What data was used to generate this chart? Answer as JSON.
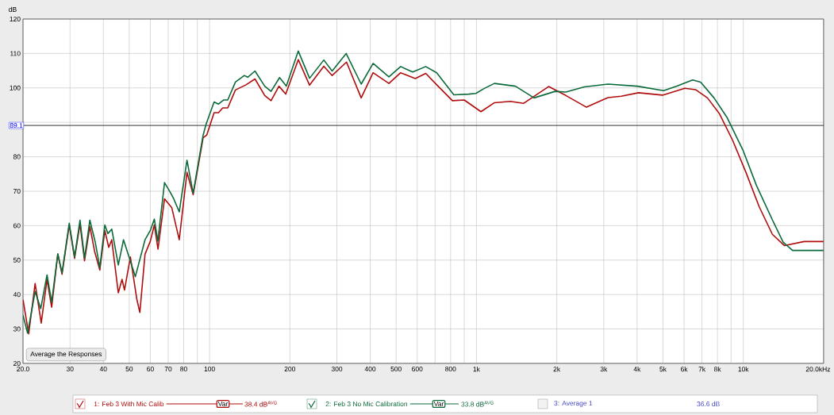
{
  "chart_data": {
    "type": "line",
    "ylabel": "dB",
    "xlim": [
      20,
      20000
    ],
    "ylim": [
      20,
      120
    ],
    "log": "x",
    "grid": true,
    "legend": "bottom",
    "xticks": [
      {
        "value": 20,
        "label": "20.0"
      },
      30,
      40,
      50,
      60,
      70,
      80,
      {
        "value": 90,
        "label": null
      },
      100,
      200,
      300,
      400,
      500,
      600,
      {
        "value": 700,
        "label": null
      },
      800,
      {
        "value": 900,
        "label": null
      },
      {
        "value": 1000,
        "label": "1k"
      },
      {
        "value": 2000,
        "label": "2k"
      },
      {
        "value": 3000,
        "label": "3k"
      },
      {
        "value": 4000,
        "label": "4k"
      },
      {
        "value": 5000,
        "label": "5k"
      },
      {
        "value": 6000,
        "label": "6k"
      },
      {
        "value": 7000,
        "label": "7k"
      },
      {
        "value": 8000,
        "label": "8k"
      },
      {
        "value": 9000,
        "label": null
      },
      {
        "value": 10000,
        "label": "10k"
      },
      {
        "value": 20000,
        "label": "20.0k"
      }
    ],
    "xlabel": "Hz",
    "yticks": [
      20,
      30,
      40,
      50,
      60,
      70,
      80,
      {
        "value": 90,
        "label": null
      },
      100,
      110,
      120
    ],
    "ref_lines": [
      {
        "axis": "y",
        "value": 89.1,
        "label": "89.1",
        "color": "#000000"
      }
    ],
    "annotations": [
      "Average the Responses",
      "Var",
      "38.4 dB$^{AVG}$",
      "Var",
      "33.8 dB$^{AVG}$",
      "3: Average 1",
      "36.6 dB"
    ],
    "series": [
      {
        "name": "1: Feb 3 With Mic Calib",
        "color": "#b00c0c",
        "x": [
          20,
          21,
          22.2,
          23.4,
          24.6,
          25.6,
          27,
          28,
          29.8,
          31.2,
          32.7,
          34,
          35.6,
          37.1,
          38.8,
          40.5,
          41.9,
          43,
          45.5,
          47,
          48,
          50.5,
          53.4,
          54.8,
          57.3,
          60,
          62.1,
          64.1,
          67.8,
          72.2,
          77,
          82.3,
          86.8,
          94.6,
          97.6,
          104,
          108,
          112,
          117,
          125,
          137,
          148,
          161,
          170,
          182,
          193,
          215,
          237,
          268,
          288,
          326,
          370,
          410,
          470,
          520,
          590,
          646,
          710,
          813,
          900,
          1040,
          1168,
          1340,
          1500,
          1865,
          2163,
          2585,
          3115,
          3490,
          4050,
          4980,
          6040,
          6620,
          7340,
          8140,
          9120,
          10230,
          11470,
          12850,
          14270,
          16900,
          20000
        ],
        "values": [
          38.5,
          28.6,
          43.2,
          31.7,
          44.4,
          36.3,
          51.8,
          45.9,
          60.2,
          50.5,
          60.5,
          49.8,
          59.8,
          52.5,
          47.1,
          58.6,
          53.7,
          55.9,
          40.5,
          44.4,
          41.3,
          50.9,
          38.6,
          34.8,
          51.7,
          55.5,
          60.2,
          53.2,
          67.8,
          65.2,
          55.9,
          75.5,
          69,
          85.5,
          86.3,
          92.8,
          92.8,
          94.2,
          94.2,
          99.4,
          100.9,
          102.6,
          97.8,
          96.3,
          100.5,
          98.2,
          108.2,
          100.8,
          106.3,
          103.6,
          107.5,
          97.1,
          104.4,
          101.3,
          104.4,
          102.7,
          104.2,
          100.9,
          96.3,
          96.5,
          93.1,
          95.7,
          96.1,
          95.5,
          100.4,
          97.8,
          94.4,
          97.2,
          97.6,
          98.6,
          97.9,
          99.9,
          99.5,
          97.1,
          92.5,
          84.8,
          75.5,
          65.5,
          57.5,
          54.2,
          55.4,
          55.4
        ]
      },
      {
        "name": "2: Feb 3 No Mic Calibration",
        "color": "#0b6a3a",
        "x": [
          20,
          20.8,
          22.2,
          23.3,
          24.6,
          25.6,
          27,
          28,
          29.8,
          31.2,
          32.7,
          34,
          35.6,
          37.3,
          38.8,
          40.5,
          41.6,
          43,
          45.5,
          47.6,
          52.7,
          57.3,
          60,
          62.1,
          64,
          67.8,
          71.6,
          73.5,
          77,
          82.3,
          86.8,
          94.6,
          97,
          104,
          108,
          113,
          117,
          125,
          135,
          139,
          148,
          161,
          170,
          183,
          194,
          215,
          237,
          268,
          288,
          325,
          370,
          410,
          470,
          520,
          577,
          646,
          710,
          823,
          935,
          995,
          1068,
          1168,
          1400,
          1645,
          1973,
          2163,
          2537,
          3115,
          4005,
          5030,
          5640,
          6460,
          6920,
          7770,
          8710,
          10000,
          11200,
          12850,
          14100,
          15300,
          20000
        ],
        "values": [
          34,
          28.8,
          40.9,
          35.9,
          45.7,
          37.8,
          51.8,
          46.3,
          60.7,
          50.9,
          61.6,
          50.5,
          61.6,
          55.2,
          47.8,
          60.2,
          57.7,
          59,
          48.6,
          55.9,
          45.2,
          55.9,
          58.6,
          61.9,
          55.5,
          72.5,
          69.4,
          67.7,
          64,
          79,
          69.4,
          86.3,
          89.4,
          95.9,
          95.3,
          96.5,
          96.5,
          101.7,
          103.6,
          103.1,
          104.9,
          100.5,
          99,
          103,
          100.5,
          110.7,
          102.8,
          108.1,
          104.9,
          110,
          101.1,
          107.1,
          103.2,
          106.2,
          104.6,
          106.2,
          104.4,
          98,
          98.2,
          98.4,
          99.8,
          101.3,
          100.5,
          97.1,
          99,
          98.8,
          100.3,
          101.1,
          100.5,
          99.2,
          100.5,
          102.3,
          101.7,
          97.1,
          91.3,
          81.7,
          71.7,
          61.7,
          55.2,
          52.8,
          52.8
        ]
      }
    ]
  }
}
